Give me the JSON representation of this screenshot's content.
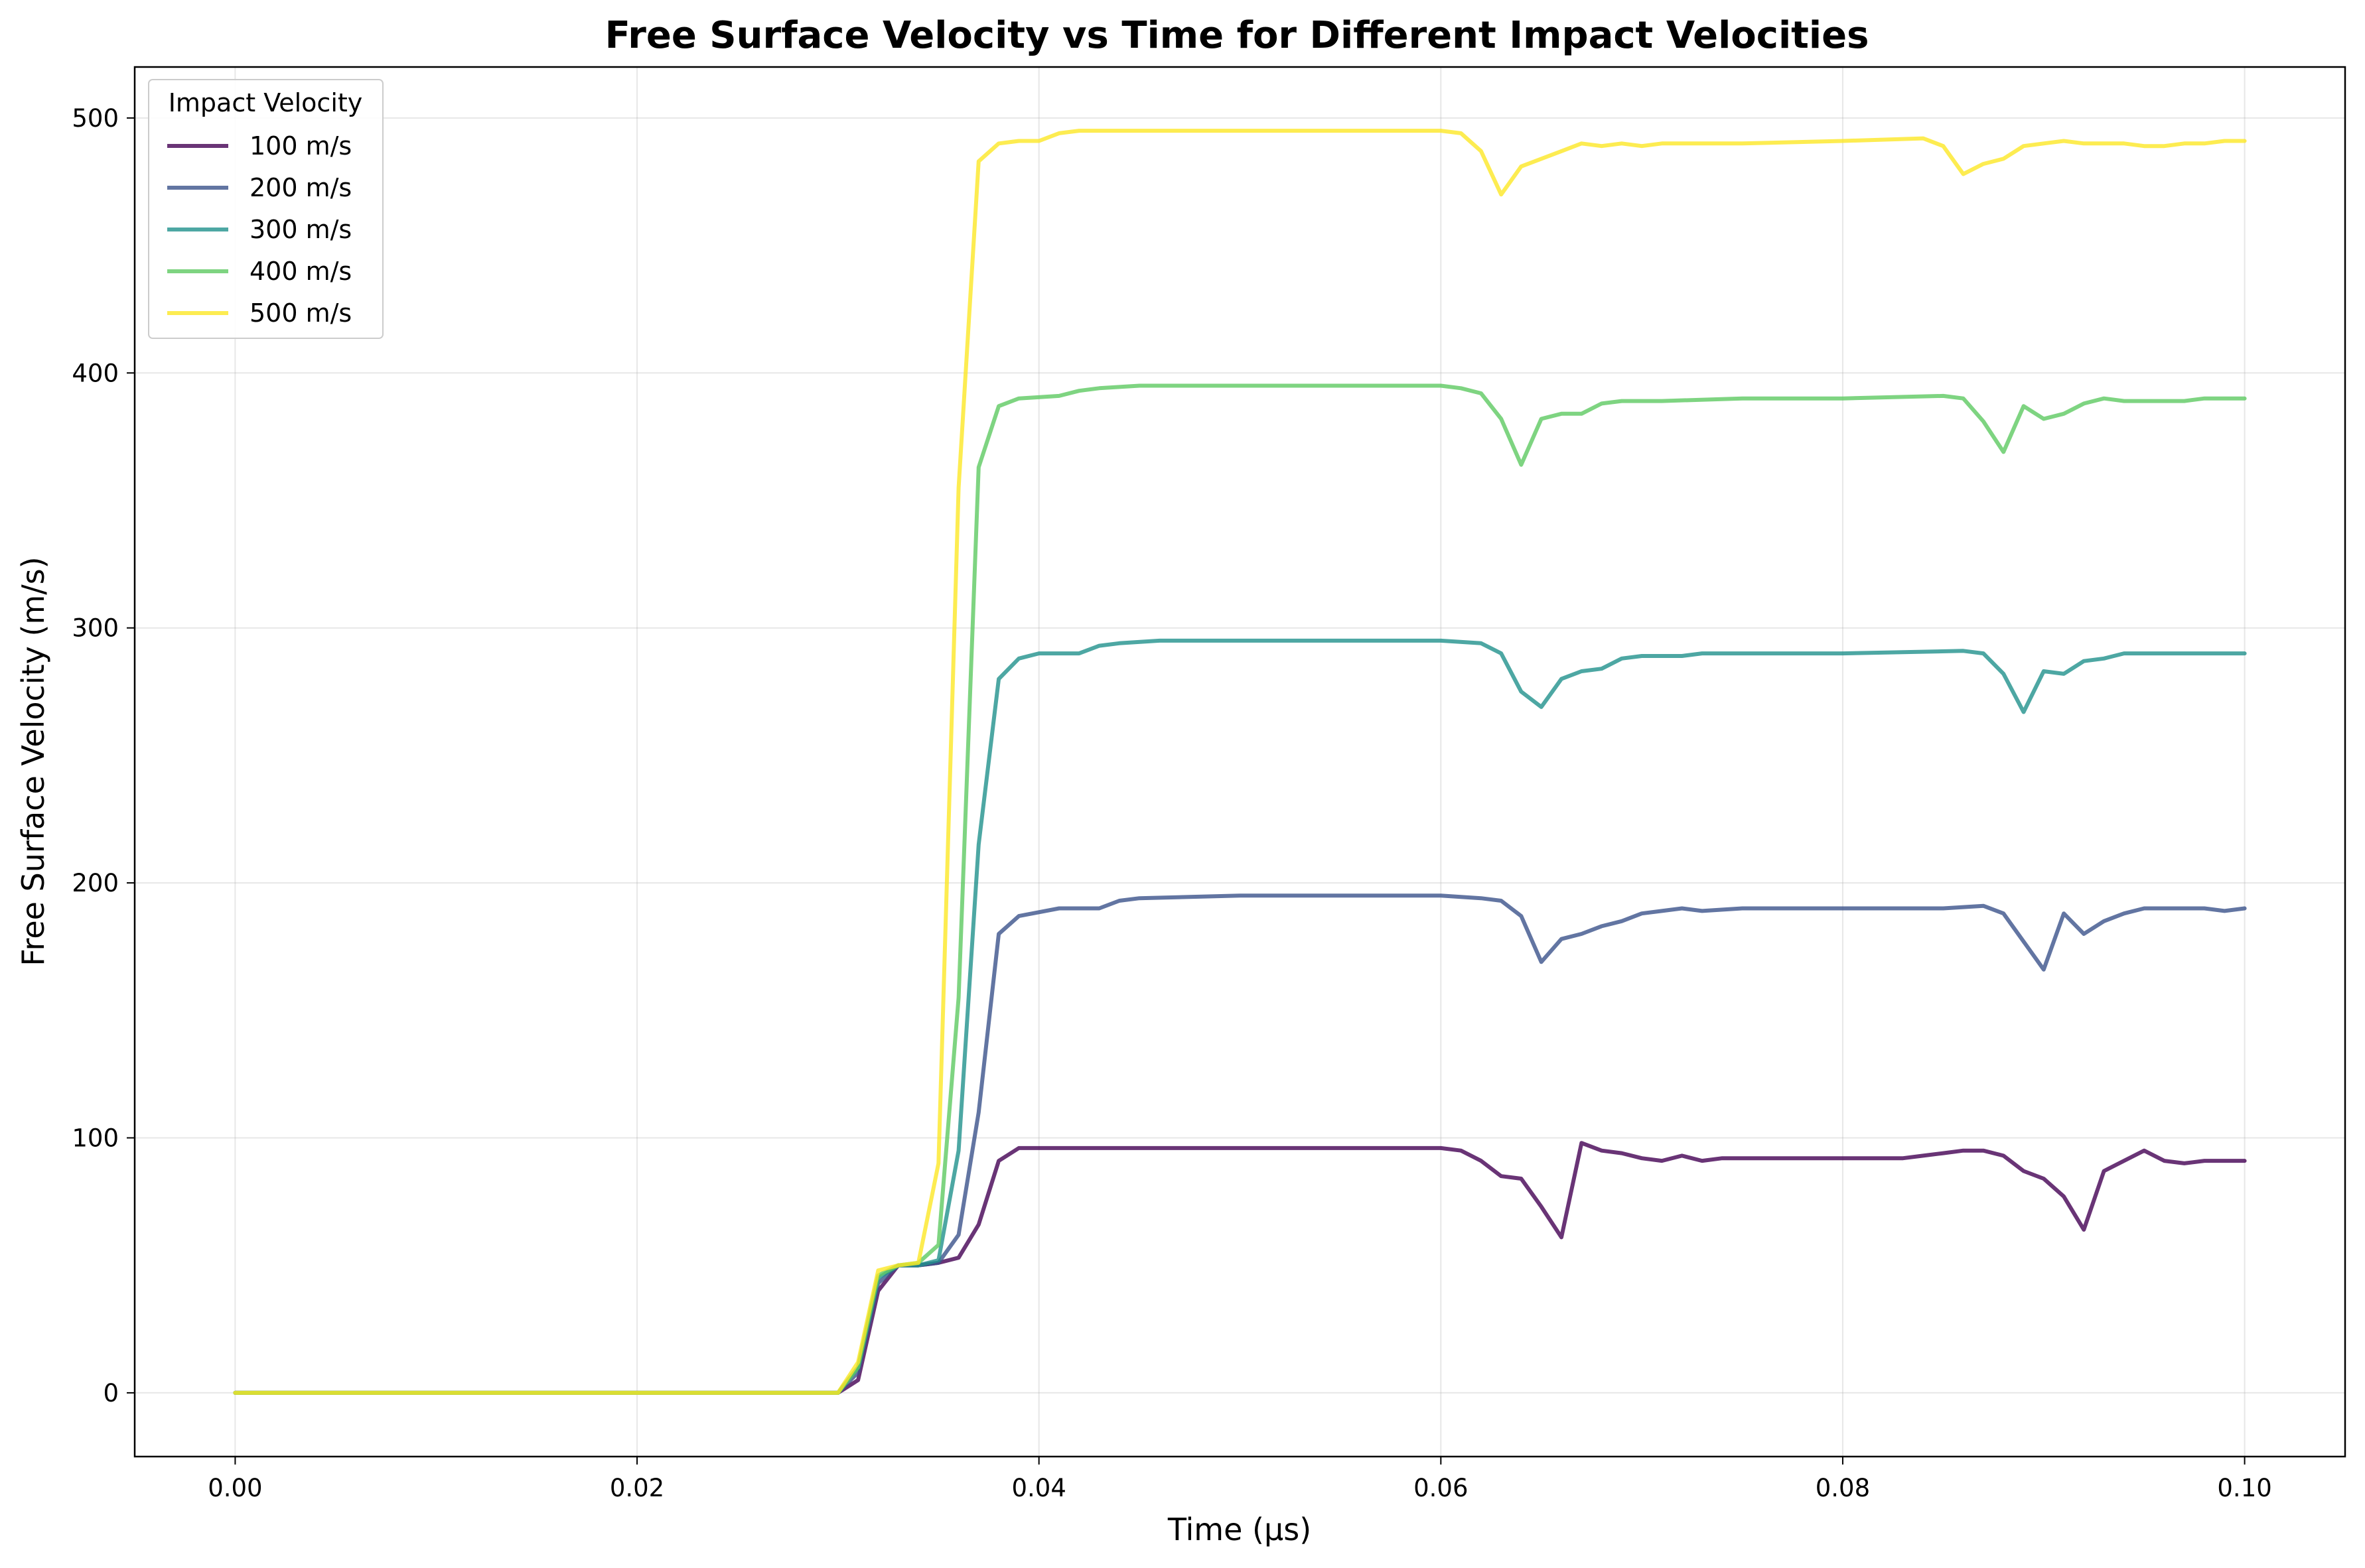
{
  "chart_data": {
    "type": "line",
    "title": "Free Surface Velocity vs Time for Different Impact Velocities",
    "xlabel": "Time (µs)",
    "ylabel": "Free Surface Velocity (m/s)",
    "xlim": [
      -0.005,
      0.105
    ],
    "ylim": [
      -25,
      520
    ],
    "xticks": [
      0.0,
      0.02,
      0.04,
      0.06,
      0.08,
      0.1
    ],
    "xtick_labels": [
      "0.00",
      "0.02",
      "0.04",
      "0.06",
      "0.08",
      "0.10"
    ],
    "yticks": [
      0,
      100,
      200,
      300,
      400,
      500
    ],
    "ytick_labels": [
      "0",
      "100",
      "200",
      "300",
      "400",
      "500"
    ],
    "grid": true,
    "legend": {
      "title": "Impact Velocity",
      "placement": "top-left"
    },
    "series": [
      {
        "name": "100 m/s",
        "color": "#440154",
        "x": [
          0,
          0.03,
          0.031,
          0.032,
          0.033,
          0.034,
          0.035,
          0.036,
          0.037,
          0.038,
          0.039,
          0.045,
          0.06,
          0.061,
          0.062,
          0.063,
          0.064,
          0.065,
          0.066,
          0.067,
          0.068,
          0.069,
          0.07,
          0.071,
          0.072,
          0.073,
          0.074,
          0.075,
          0.076,
          0.077,
          0.078,
          0.079,
          0.08,
          0.081,
          0.082,
          0.083,
          0.084,
          0.085,
          0.086,
          0.087,
          0.088,
          0.089,
          0.09,
          0.091,
          0.092,
          0.093,
          0.094,
          0.095,
          0.096,
          0.097,
          0.098,
          0.099,
          0.1
        ],
        "y": [
          0,
          0,
          5,
          40,
          50,
          50,
          51,
          53,
          66,
          91,
          96,
          96,
          96,
          95,
          91,
          85,
          84,
          73,
          61,
          98,
          95,
          94,
          92,
          91,
          93,
          91,
          92,
          92,
          92,
          92,
          92,
          92,
          92,
          92,
          92,
          92,
          93,
          94,
          95,
          95,
          93,
          87,
          84,
          77,
          64,
          87,
          91,
          95,
          91,
          90,
          91,
          91,
          91
        ]
      },
      {
        "name": "200 m/s",
        "color": "#3b528b",
        "x": [
          0,
          0.03,
          0.031,
          0.032,
          0.033,
          0.034,
          0.035,
          0.036,
          0.037,
          0.038,
          0.039,
          0.041,
          0.043,
          0.044,
          0.045,
          0.05,
          0.06,
          0.062,
          0.063,
          0.064,
          0.065,
          0.066,
          0.067,
          0.068,
          0.069,
          0.07,
          0.071,
          0.072,
          0.073,
          0.075,
          0.08,
          0.085,
          0.087,
          0.088,
          0.089,
          0.09,
          0.091,
          0.092,
          0.093,
          0.094,
          0.095,
          0.096,
          0.097,
          0.098,
          0.099,
          0.1
        ],
        "y": [
          0,
          0,
          8,
          43,
          50,
          50,
          51,
          62,
          110,
          180,
          187,
          190,
          190,
          193,
          194,
          195,
          195,
          194,
          193,
          187,
          169,
          178,
          180,
          183,
          185,
          188,
          189,
          190,
          189,
          190,
          190,
          190,
          191,
          188,
          177,
          166,
          188,
          180,
          185,
          188,
          190,
          190,
          190,
          190,
          189,
          190
        ]
      },
      {
        "name": "300 m/s",
        "color": "#21918c",
        "x": [
          0,
          0.03,
          0.031,
          0.032,
          0.033,
          0.034,
          0.035,
          0.036,
          0.037,
          0.038,
          0.039,
          0.04,
          0.042,
          0.043,
          0.044,
          0.046,
          0.05,
          0.06,
          0.062,
          0.063,
          0.064,
          0.065,
          0.066,
          0.067,
          0.068,
          0.069,
          0.07,
          0.071,
          0.072,
          0.073,
          0.075,
          0.08,
          0.086,
          0.087,
          0.088,
          0.089,
          0.09,
          0.091,
          0.092,
          0.093,
          0.094,
          0.095,
          0.096,
          0.097,
          0.098,
          0.099,
          0.1
        ],
        "y": [
          0,
          0,
          10,
          45,
          50,
          50,
          52,
          95,
          215,
          280,
          288,
          290,
          290,
          293,
          294,
          295,
          295,
          295,
          294,
          290,
          275,
          269,
          280,
          283,
          284,
          288,
          289,
          289,
          289,
          290,
          290,
          290,
          291,
          290,
          282,
          267,
          283,
          282,
          287,
          288,
          290,
          290,
          290,
          290,
          290,
          290,
          290
        ]
      },
      {
        "name": "400 m/s",
        "color": "#5ec962",
        "x": [
          0,
          0.03,
          0.031,
          0.032,
          0.033,
          0.034,
          0.035,
          0.036,
          0.037,
          0.038,
          0.039,
          0.041,
          0.042,
          0.043,
          0.045,
          0.05,
          0.06,
          0.061,
          0.062,
          0.063,
          0.064,
          0.065,
          0.066,
          0.067,
          0.068,
          0.069,
          0.071,
          0.075,
          0.08,
          0.085,
          0.086,
          0.087,
          0.088,
          0.089,
          0.09,
          0.091,
          0.092,
          0.093,
          0.094,
          0.095,
          0.096,
          0.097,
          0.098,
          0.099,
          0.1
        ],
        "y": [
          0,
          0,
          10,
          46,
          50,
          51,
          58,
          155,
          363,
          387,
          390,
          391,
          393,
          394,
          395,
          395,
          395,
          394,
          392,
          382,
          364,
          382,
          384,
          384,
          388,
          389,
          389,
          390,
          390,
          391,
          390,
          381,
          369,
          387,
          382,
          384,
          388,
          390,
          389,
          389,
          389,
          389,
          390,
          390,
          390
        ]
      },
      {
        "name": "500 m/s",
        "color": "#fde725",
        "x": [
          0,
          0.03,
          0.031,
          0.032,
          0.033,
          0.034,
          0.035,
          0.036,
          0.037,
          0.038,
          0.039,
          0.04,
          0.041,
          0.042,
          0.045,
          0.05,
          0.06,
          0.061,
          0.062,
          0.063,
          0.064,
          0.065,
          0.066,
          0.067,
          0.068,
          0.069,
          0.07,
          0.071,
          0.075,
          0.08,
          0.084,
          0.085,
          0.086,
          0.087,
          0.088,
          0.089,
          0.09,
          0.091,
          0.092,
          0.093,
          0.094,
          0.095,
          0.096,
          0.097,
          0.098,
          0.099,
          0.1
        ],
        "y": [
          0,
          0,
          12,
          48,
          50,
          51,
          90,
          355,
          483,
          490,
          491,
          491,
          494,
          495,
          495,
          495,
          495,
          494,
          487,
          470,
          481,
          484,
          487,
          490,
          489,
          490,
          489,
          490,
          490,
          491,
          492,
          489,
          478,
          482,
          484,
          489,
          490,
          491,
          490,
          490,
          490,
          489,
          489,
          490,
          490,
          491,
          491
        ]
      }
    ]
  }
}
